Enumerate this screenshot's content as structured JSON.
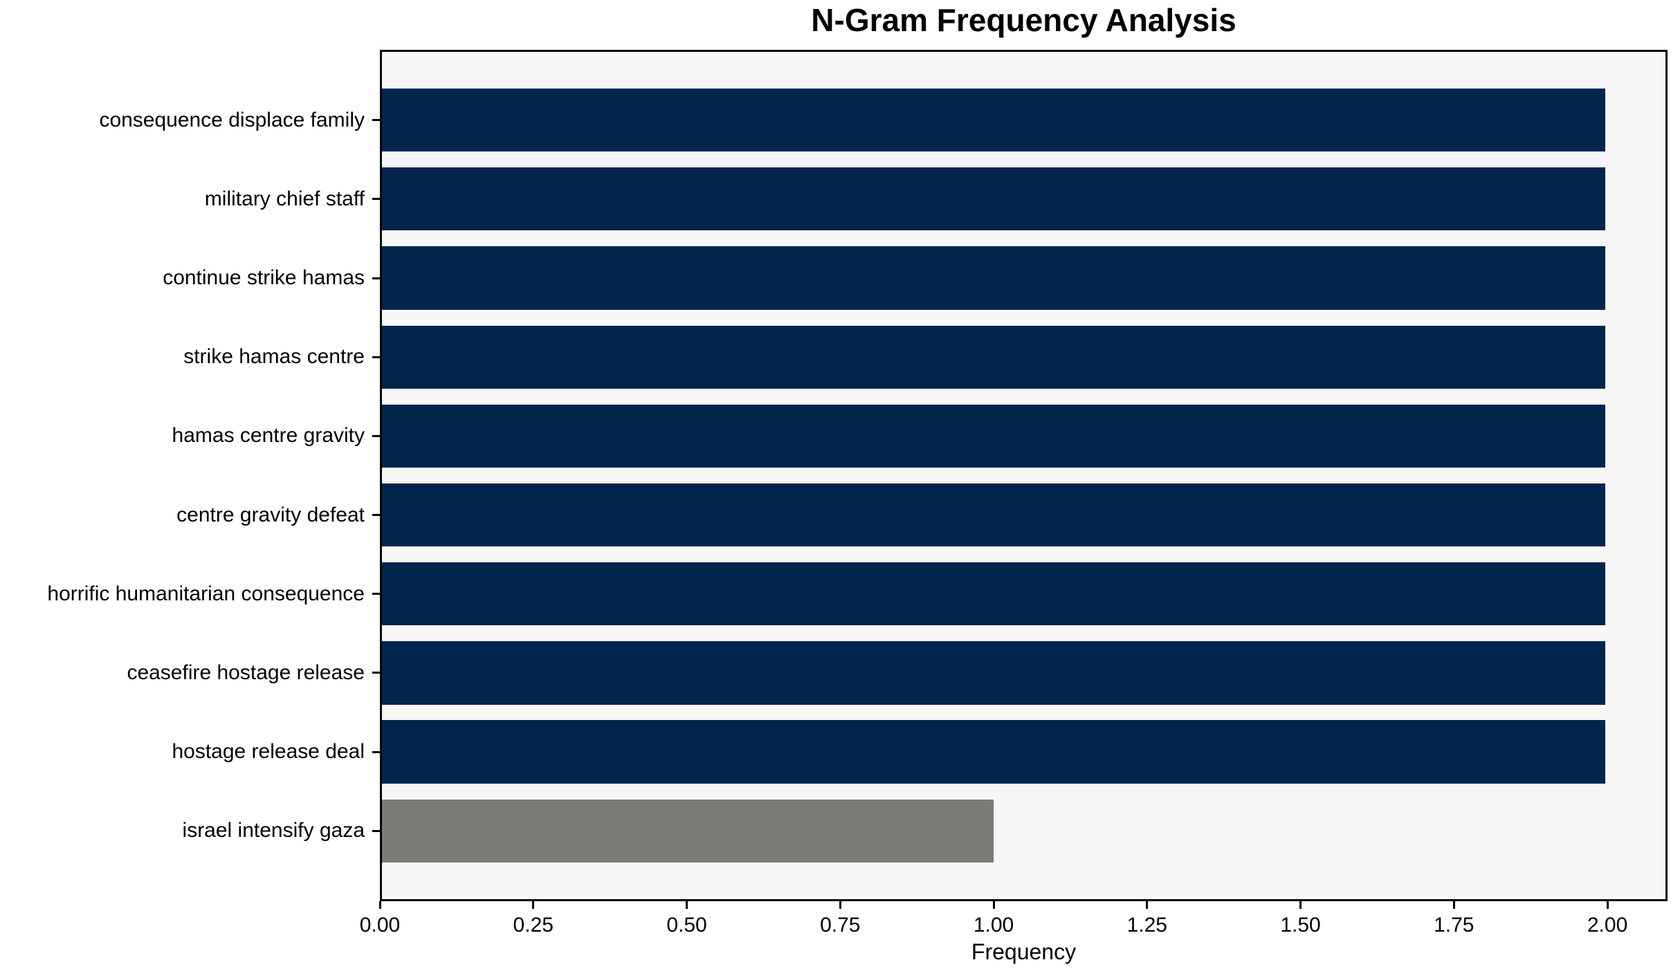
{
  "chart_data": {
    "type": "bar",
    "orientation": "horizontal",
    "title": "N-Gram Frequency Analysis",
    "xlabel": "Frequency",
    "ylabel": "",
    "categories": [
      "consequence displace family",
      "military chief staff",
      "continue strike hamas",
      "strike hamas centre",
      "hamas centre gravity",
      "centre gravity defeat",
      "horrific humanitarian consequence",
      "ceasefire hostage release",
      "hostage release deal",
      "israel intensify gaza"
    ],
    "values": [
      2,
      2,
      2,
      2,
      2,
      2,
      2,
      2,
      2,
      1
    ],
    "bar_colors": [
      "#01254d",
      "#01254d",
      "#01254d",
      "#01254d",
      "#01254d",
      "#01254d",
      "#01254d",
      "#01254d",
      "#01254d",
      "#7c7b78"
    ],
    "xlim": [
      0,
      2.098
    ],
    "xticks": [
      0,
      0.25,
      0.5,
      0.75,
      1.0,
      1.25,
      1.5,
      1.75,
      2.0
    ],
    "xtick_labels": [
      "0.00",
      "0.25",
      "0.50",
      "0.75",
      "1.00",
      "1.25",
      "1.50",
      "1.75",
      "2.00"
    ],
    "grid": false,
    "legend": null,
    "colors": {
      "bar_default": "#01254d",
      "bar_highlight": "#7c7b78",
      "plot_background": "#f7f7f7",
      "figure_background": "#ffffff",
      "axis": "#000000",
      "text": "#000000"
    }
  }
}
